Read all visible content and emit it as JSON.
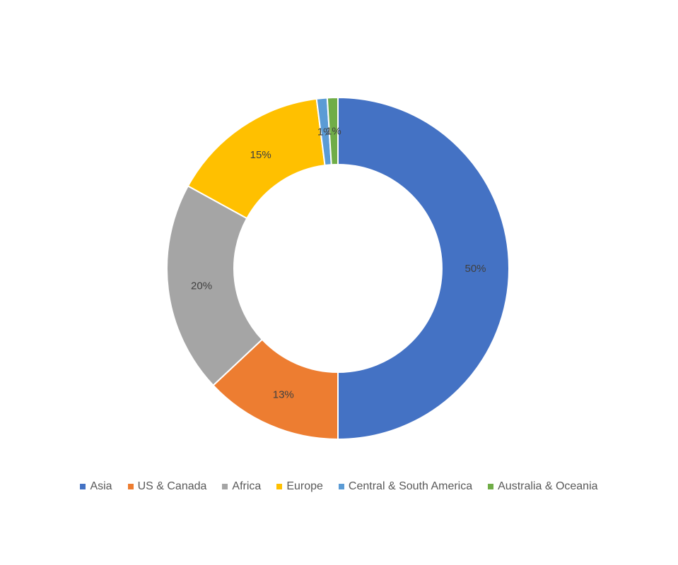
{
  "chart_data": {
    "type": "pie",
    "variant": "doughnut",
    "title": "",
    "categories": [
      "Asia",
      "US & Canada",
      "Africa",
      "Europe",
      "Central & South America",
      "Australia & Oceania"
    ],
    "values": [
      50,
      13,
      20,
      15,
      1,
      1
    ],
    "labels": [
      "50%",
      "13%",
      "20%",
      "15%",
      "1%",
      "1%"
    ],
    "colors": [
      "#4472C4",
      "#ED7D31",
      "#A5A5A5",
      "#FFC000",
      "#5B9BD5",
      "#70AD47"
    ],
    "legend_position": "bottom"
  }
}
